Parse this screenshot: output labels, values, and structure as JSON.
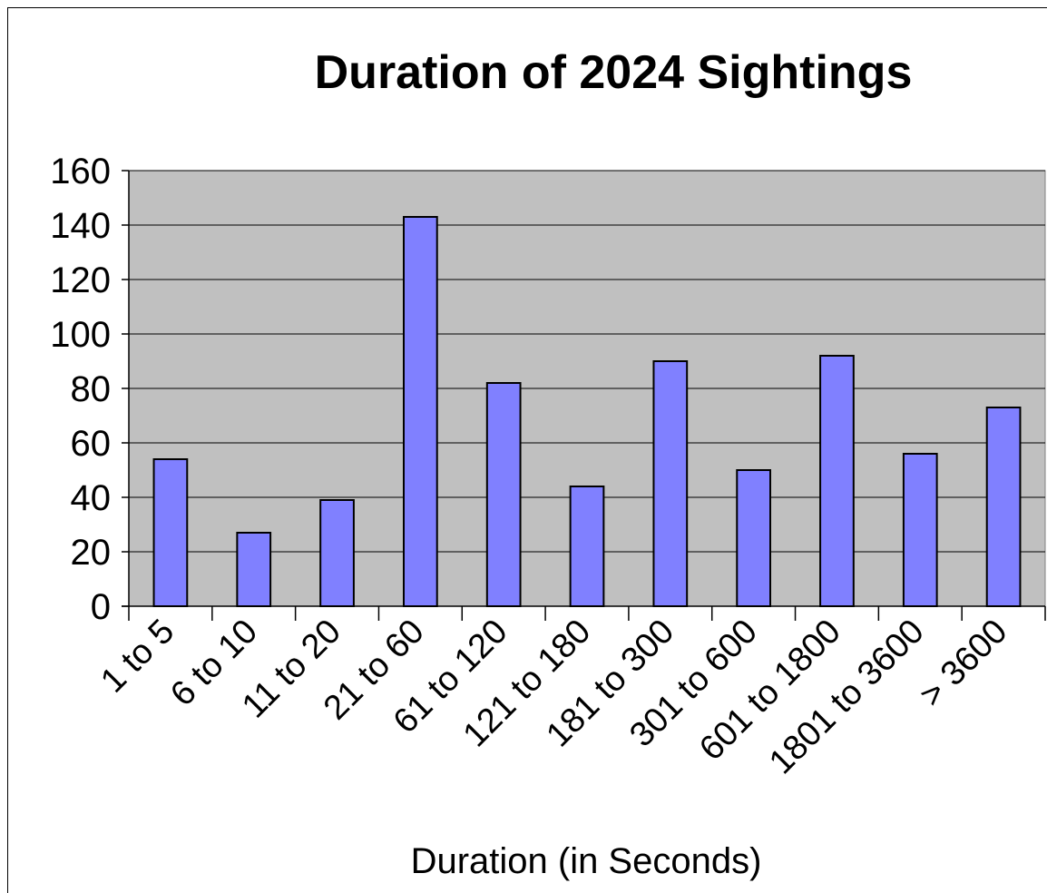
{
  "chart_data": {
    "type": "bar",
    "title": "Duration of 2024 Sightings",
    "xlabel": "Duration (in Seconds)",
    "ylabel": "",
    "ylim": [
      0,
      160
    ],
    "yticks": [
      "0",
      "20",
      "40",
      "60",
      "80",
      "100",
      "120",
      "140",
      "160"
    ],
    "categories": [
      "1 to 5",
      "6 to 10",
      "11 to 20",
      "21 to 60",
      "61 to 120",
      "121 to 180",
      "181 to 300",
      "301 to 600",
      "601 to 1800",
      "1801 to 3600",
      "> 3600"
    ],
    "values": [
      54,
      27,
      39,
      143,
      82,
      44,
      90,
      50,
      92,
      56,
      73
    ],
    "grid": true,
    "legend": "none",
    "colors": {
      "bar": "#8080ff",
      "plot_background": "#c0c0c0",
      "bar_outline": "#000000"
    }
  }
}
